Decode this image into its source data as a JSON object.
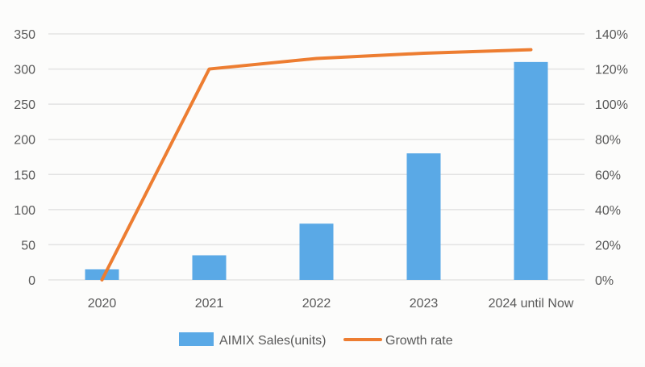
{
  "chart_data": {
    "type": "bar+line",
    "categories": [
      "2020",
      "2021",
      "2022",
      "2023",
      "2024 until Now"
    ],
    "series": [
      {
        "name": "AIMIX Sales(units)",
        "type": "bar",
        "axis": "left",
        "color": "#5aa9e6",
        "values": [
          15,
          35,
          80,
          180,
          310
        ]
      },
      {
        "name": "Growth rate",
        "type": "line",
        "axis": "right",
        "color": "#ed7d31",
        "values": [
          0,
          120,
          126,
          129,
          131
        ]
      }
    ],
    "y_left": {
      "range": [
        0,
        350
      ],
      "ticks": [
        "0",
        "50",
        "100",
        "150",
        "200",
        "250",
        "300",
        "350"
      ]
    },
    "y_right": {
      "range": [
        0,
        140
      ],
      "ticks": [
        "0%",
        "20%",
        "40%",
        "60%",
        "80%",
        "100%",
        "120%",
        "140%"
      ]
    },
    "grid": true,
    "legend": "bottom"
  }
}
